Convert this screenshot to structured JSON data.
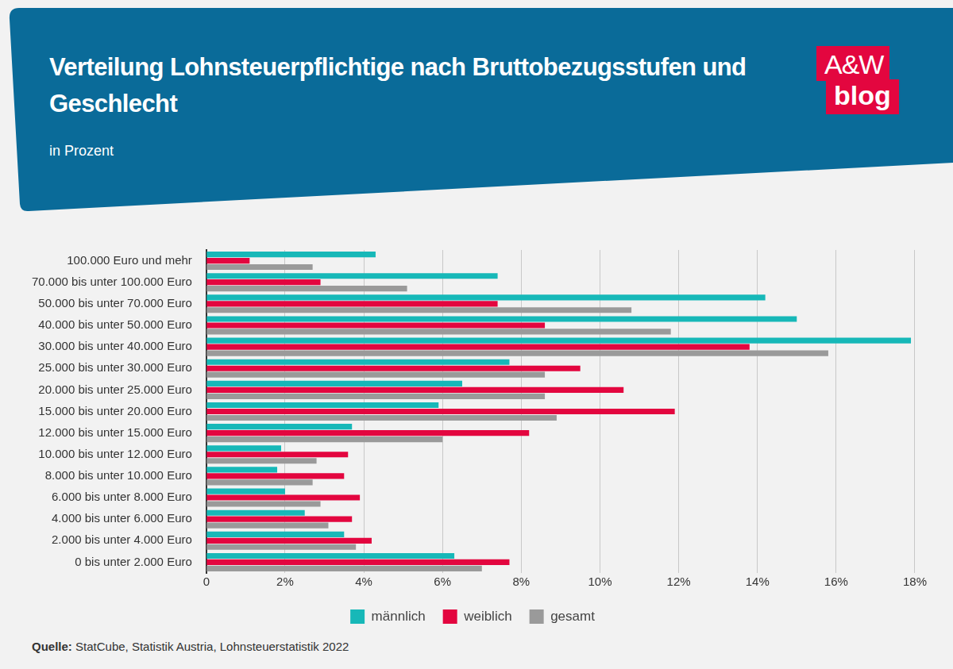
{
  "chart_data": {
    "type": "bar",
    "orientation": "horizontal",
    "title": "Verteilung Lohnsteuerpflichtige nach Bruttobezugsstufen und Geschlecht",
    "subtitle": "in Prozent",
    "logo": [
      "A&W",
      "blog"
    ],
    "source_label": "Quelle:",
    "source": "StatCube, Statistik Austria, Lohnsteuerstatistik 2022",
    "categories": [
      "100.000 Euro und mehr",
      "70.000 bis unter 100.000 Euro",
      "50.000 bis unter 70.000 Euro",
      "40.000 bis unter 50.000 Euro",
      "30.000 bis unter 40.000 Euro",
      "25.000 bis unter 30.000 Euro",
      "20.000 bis unter 25.000 Euro",
      "15.000 bis unter 20.000 Euro",
      "12.000 bis unter 15.000 Euro",
      "10.000 bis unter 12.000 Euro",
      "8.000 bis unter 10.000 Euro",
      "6.000 bis unter 8.000 Euro",
      "4.000 bis unter 6.000 Euro",
      "2.000 bis unter 4.000 Euro",
      "0 bis unter 2.000 Euro"
    ],
    "series": [
      {
        "name": "männlich",
        "color": "#17b8b8",
        "values": [
          4.3,
          7.4,
          14.2,
          15.0,
          17.9,
          7.7,
          6.5,
          5.9,
          3.7,
          1.9,
          1.8,
          2.0,
          2.5,
          3.5,
          6.3
        ]
      },
      {
        "name": "weiblich",
        "color": "#e3063f",
        "values": [
          1.1,
          2.9,
          7.4,
          8.6,
          13.8,
          9.5,
          10.6,
          11.9,
          8.2,
          3.6,
          3.5,
          3.9,
          3.7,
          4.2,
          7.7
        ]
      },
      {
        "name": "gesamt",
        "color": "#9a9a9a",
        "values": [
          2.7,
          5.1,
          10.8,
          11.8,
          15.8,
          8.6,
          8.6,
          8.9,
          6.0,
          2.8,
          2.7,
          2.9,
          3.1,
          3.8,
          7.0
        ]
      }
    ],
    "xlim": [
      0,
      18
    ],
    "xticks": [
      0,
      {
        "value": 2,
        "label": "2%"
      },
      {
        "value": 4,
        "label": "4%"
      },
      {
        "value": 6,
        "label": "6%"
      },
      {
        "value": 8,
        "label": "8%"
      },
      {
        "value": 10,
        "label": "10%"
      },
      {
        "value": 12,
        "label": "12%"
      },
      {
        "value": 14,
        "label": "14%"
      },
      {
        "value": 16,
        "label": "16%"
      },
      {
        "value": 18,
        "label": "18%"
      }
    ],
    "grid": true,
    "legend": "bottom"
  }
}
